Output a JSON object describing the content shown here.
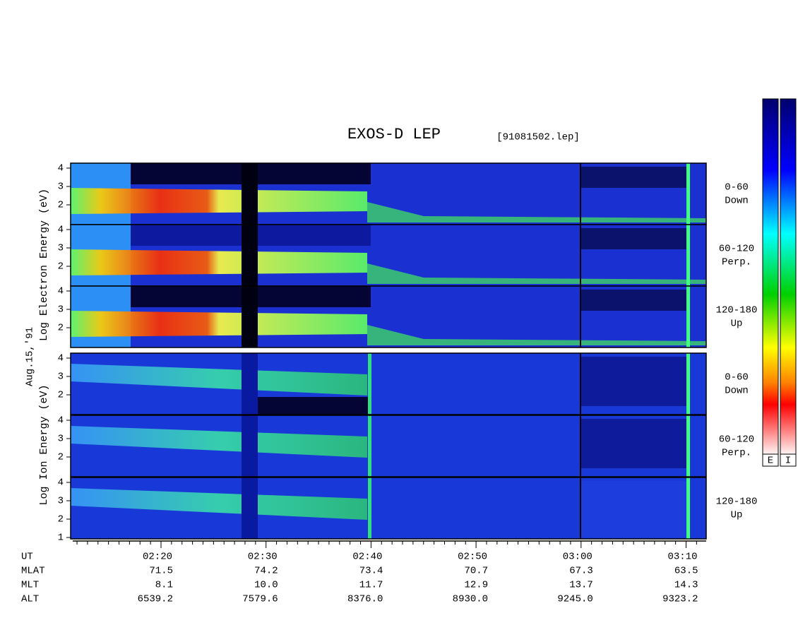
{
  "header": {
    "title": "EXOS-D LEP",
    "file": "[91081502.lep]",
    "date": "Aug.15,'91"
  },
  "groups": [
    {
      "label": "Log Electron Energy (eV)"
    },
    {
      "label": "Log Ion Energy (eV)"
    }
  ],
  "panels": [
    {
      "group": 0,
      "ticks": [
        "4",
        "3",
        "2"
      ],
      "angle": [
        "0-60",
        "Down"
      ]
    },
    {
      "group": 0,
      "ticks": [
        "4",
        "3",
        "2"
      ],
      "angle": [
        "60-120",
        "Perp."
      ]
    },
    {
      "group": 0,
      "ticks": [
        "4",
        "3",
        "2"
      ],
      "angle": [
        "120-180",
        "Up"
      ]
    },
    {
      "group": 1,
      "ticks": [
        "4",
        "3",
        "2"
      ],
      "angle": [
        "0-60",
        "Down"
      ]
    },
    {
      "group": 1,
      "ticks": [
        "4",
        "3",
        "2"
      ],
      "angle": [
        "60-120",
        "Perp."
      ]
    },
    {
      "group": 1,
      "ticks": [
        "4",
        "3",
        "2",
        "1"
      ],
      "angle": [
        "120-180",
        "Up"
      ]
    }
  ],
  "time_axis": {
    "label": "UT",
    "ticks": [
      "02:20",
      "02:30",
      "02:40",
      "02:50",
      "03:00",
      "03:10"
    ]
  },
  "table": {
    "rows": [
      {
        "label": "MLAT",
        "values": [
          "71.5",
          "74.2",
          "73.4",
          "70.7",
          "67.3",
          "63.5"
        ]
      },
      {
        "label": "MLT",
        "values": [
          "8.1",
          "10.0",
          "11.7",
          "12.9",
          "13.7",
          "14.3"
        ]
      },
      {
        "label": "ALT",
        "values": [
          "6539.2",
          "7579.6",
          "8376.0",
          "8930.0",
          "9245.0",
          "9323.2"
        ]
      }
    ]
  },
  "colorbar": {
    "labels": [
      "E",
      "I"
    ]
  }
}
